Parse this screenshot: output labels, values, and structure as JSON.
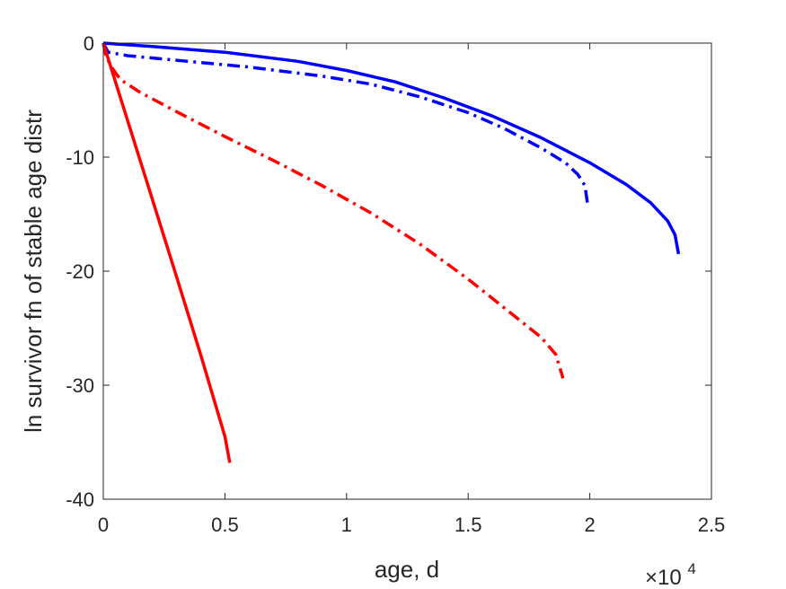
{
  "chart_data": {
    "type": "line",
    "title": "",
    "xlabel": "age, d",
    "ylabel": "ln survivor fn of stable age distr",
    "x_multiplier_label": {
      "base": "×10",
      "exponent": "4"
    },
    "xlim": [
      0,
      25000
    ],
    "ylim": [
      -40,
      0
    ],
    "xticks": [
      0,
      5000,
      10000,
      15000,
      20000,
      25000
    ],
    "xtick_labels": [
      "0",
      "0.5",
      "1",
      "1.5",
      "2",
      "2.5"
    ],
    "yticks": [
      -40,
      -30,
      -20,
      -10,
      0
    ],
    "ytick_labels": [
      "-40",
      "-30",
      "-20",
      "-10",
      "0"
    ],
    "grid": false,
    "box": true,
    "series": [
      {
        "color": "#0000ff",
        "style": "solid",
        "x": [
          0,
          2000,
          5000,
          8000,
          10000,
          12000,
          14000,
          16000,
          18000,
          20000,
          21500,
          22500,
          23200,
          23500,
          23650
        ],
        "y": [
          0,
          -0.3,
          -0.8,
          -1.6,
          -2.4,
          -3.4,
          -4.8,
          -6.4,
          -8.3,
          -10.5,
          -12.4,
          -14.0,
          -15.6,
          -16.8,
          -18.5
        ]
      },
      {
        "color": "#0000ff",
        "style": "dashdot",
        "x": [
          0,
          200,
          1000,
          3000,
          6000,
          9000,
          11000,
          13000,
          15000,
          16500,
          18000,
          19000,
          19500,
          19800,
          19900
        ],
        "y": [
          0,
          -0.8,
          -1.1,
          -1.5,
          -2.1,
          -2.9,
          -3.6,
          -4.7,
          -6.1,
          -7.5,
          -9.2,
          -10.5,
          -11.5,
          -12.5,
          -14.0
        ]
      },
      {
        "color": "#ff0000",
        "style": "dashdot",
        "x": [
          0,
          100,
          300,
          700,
          1500,
          3000,
          5000,
          7000,
          9000,
          11000,
          13000,
          15000,
          17000,
          18000,
          18600,
          18900
        ],
        "y": [
          0,
          -1.0,
          -2.0,
          -3.2,
          -4.3,
          -6.0,
          -8.2,
          -10.3,
          -12.5,
          -14.9,
          -17.6,
          -20.7,
          -24.1,
          -25.8,
          -27.3,
          -29.4
        ]
      },
      {
        "color": "#ff0000",
        "style": "solid",
        "x": [
          0,
          1000,
          2000,
          3000,
          4000,
          5000,
          5200
        ],
        "y": [
          0,
          -6.8,
          -13.6,
          -20.4,
          -27.3,
          -34.5,
          -36.8
        ]
      }
    ]
  }
}
